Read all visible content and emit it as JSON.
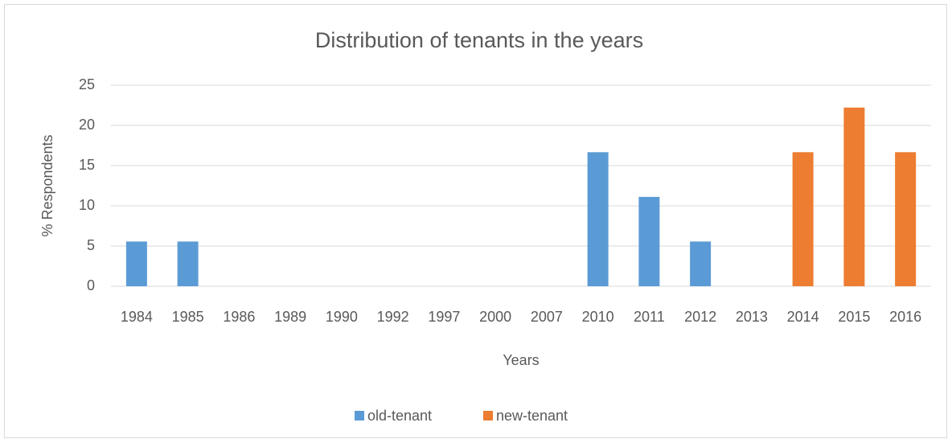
{
  "chart_data": {
    "type": "bar",
    "stacked": true,
    "title": "Distribution of tenants in the years",
    "x_label": "Years",
    "y_label": "% Respondents",
    "categories": [
      "1984",
      "1985",
      "1986",
      "1989",
      "1990",
      "1992",
      "1997",
      "2000",
      "2007",
      "2010",
      "2011",
      "2012",
      "2013",
      "2014",
      "2015",
      "2016"
    ],
    "series": [
      {
        "name": "old-tenant",
        "color": "#5b9bd5",
        "values": [
          5.56,
          5.56,
          0,
          0,
          0,
          0,
          0,
          0,
          0,
          16.67,
          11.11,
          5.56,
          0,
          0,
          0,
          0
        ]
      },
      {
        "name": "new-tenant",
        "color": "#ed7d31",
        "values": [
          0,
          0,
          0,
          0,
          0,
          0,
          0,
          0,
          0,
          0,
          0,
          0,
          0,
          16.67,
          22.22,
          16.67
        ]
      }
    ],
    "ylim": [
      0,
      25
    ],
    "yticks": [
      0,
      5,
      10,
      15,
      20,
      25
    ],
    "grid": true,
    "legend": "bottom"
  }
}
